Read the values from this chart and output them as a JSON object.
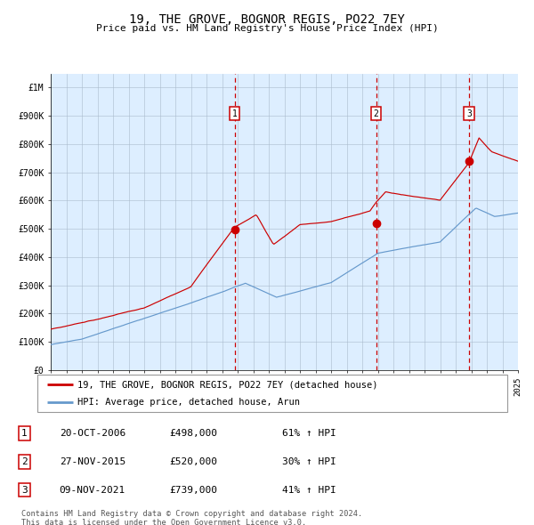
{
  "title": "19, THE GROVE, BOGNOR REGIS, PO22 7EY",
  "subtitle": "Price paid vs. HM Land Registry's House Price Index (HPI)",
  "legend_label_red": "19, THE GROVE, BOGNOR REGIS, PO22 7EY (detached house)",
  "legend_label_blue": "HPI: Average price, detached house, Arun",
  "footer_line1": "Contains HM Land Registry data © Crown copyright and database right 2024.",
  "footer_line2": "This data is licensed under the Open Government Licence v3.0.",
  "transactions": [
    {
      "label": "1",
      "date": "20-OCT-2006",
      "price": "£498,000",
      "hpi_pct": "61% ↑ HPI",
      "x_year": 2006.8,
      "y_val": 498000
    },
    {
      "label": "2",
      "date": "27-NOV-2015",
      "price": "£520,000",
      "hpi_pct": "30% ↑ HPI",
      "x_year": 2015.9,
      "y_val": 520000
    },
    {
      "label": "3",
      "date": "09-NOV-2021",
      "price": "£739,000",
      "hpi_pct": "41% ↑ HPI",
      "x_year": 2021.85,
      "y_val": 739000
    }
  ],
  "color_red": "#cc0000",
  "color_blue": "#6699cc",
  "color_bg": "#ddeeff",
  "color_vline": "#cc0000",
  "ylim": [
    0,
    1050000
  ],
  "xlim_start": 1995,
  "xlim_end": 2025,
  "ytick_vals": [
    0,
    100000,
    200000,
    300000,
    400000,
    500000,
    600000,
    700000,
    800000,
    900000,
    1000000
  ],
  "ytick_labels": [
    "£0",
    "£100K",
    "£200K",
    "£300K",
    "£400K",
    "£500K",
    "£600K",
    "£700K",
    "£800K",
    "£900K",
    "£1M"
  ]
}
